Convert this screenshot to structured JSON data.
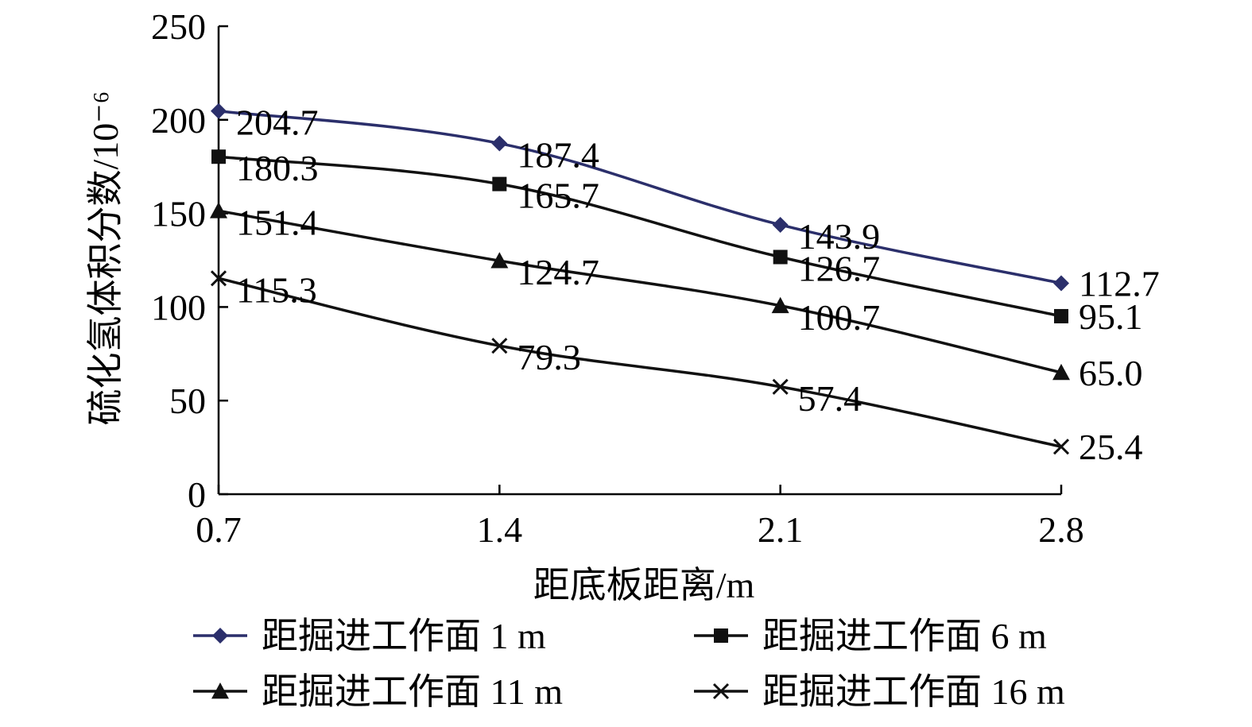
{
  "chart_data": {
    "type": "line",
    "x": [
      0.7,
      1.4,
      2.1,
      2.8
    ],
    "xticks": [
      "0.7",
      "1.4",
      "2.1",
      "2.8"
    ],
    "yticks": [
      "0",
      "50",
      "100",
      "150",
      "200",
      "250"
    ],
    "ylim": [
      0,
      250
    ],
    "xlabel": "距底板距离/m",
    "ylabel": "硫化氢体积分数/10⁻⁶",
    "grid": false,
    "legend_position": "bottom",
    "series": [
      {
        "name": "距掘进工作面 1 m",
        "values": [
          204.7,
          187.4,
          143.9,
          112.7
        ],
        "labels": [
          "204.7",
          "187.4",
          "143.9",
          "112.7"
        ],
        "marker": "diamond",
        "color": "#2b2f6b"
      },
      {
        "name": "距掘进工作面 6 m",
        "values": [
          180.3,
          165.7,
          126.7,
          95.1
        ],
        "labels": [
          "180.3",
          "165.7",
          "126.7",
          "95.1"
        ],
        "marker": "square",
        "color": "#111111"
      },
      {
        "name": "距掘进工作面 11 m",
        "values": [
          151.4,
          124.7,
          100.7,
          65.0
        ],
        "labels": [
          "151.4",
          "124.7",
          "100.7",
          "65.0"
        ],
        "marker": "triangle",
        "color": "#111111"
      },
      {
        "name": "距掘进工作面 16 m",
        "values": [
          115.3,
          79.3,
          57.4,
          25.4
        ],
        "labels": [
          "115.3",
          "79.3",
          "57.4",
          "25.4"
        ],
        "marker": "x",
        "color": "#111111"
      }
    ]
  }
}
